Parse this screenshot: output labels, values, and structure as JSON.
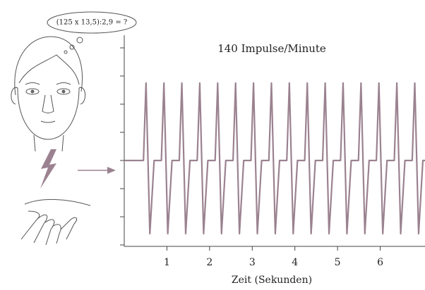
{
  "chart_data": {
    "type": "line",
    "title": "140 Impulse/Minute",
    "annotation": "(125 x 13,5):2,9 = ?",
    "x_label": "Zeit (Sekunden)",
    "color": "#9b8290",
    "x": [
      0,
      0.45,
      0.51,
      0.6,
      0.7,
      0.87,
      0.93,
      1.02,
      1.12,
      1.29,
      1.35,
      1.44,
      1.54,
      1.71,
      1.77,
      1.86,
      1.96,
      2.13,
      2.19,
      2.28,
      2.38,
      2.55,
      2.61,
      2.7,
      2.8,
      2.97,
      3.03,
      3.12,
      3.22,
      3.39,
      3.45,
      3.54,
      3.64,
      3.81,
      3.87,
      3.96,
      4.06,
      4.23,
      4.29,
      4.38,
      4.48,
      4.65,
      4.71,
      4.8,
      4.9,
      5.07,
      5.13,
      5.22,
      5.32,
      5.49,
      5.55,
      5.64,
      5.74,
      5.91,
      5.97,
      6.06,
      6.16,
      6.33,
      6.39,
      6.48,
      6.58,
      6.75,
      6.81,
      6.9,
      7.0,
      7.05
    ],
    "values": [
      0,
      0,
      2.75,
      -2.6,
      0,
      0,
      2.75,
      -2.6,
      0,
      0,
      2.75,
      -2.6,
      0,
      0,
      2.75,
      -2.6,
      0,
      0,
      2.75,
      -2.6,
      0,
      0,
      2.75,
      -2.6,
      0,
      0,
      2.75,
      -2.6,
      0,
      0,
      2.75,
      -2.6,
      0,
      0,
      2.75,
      -2.6,
      0,
      0,
      2.75,
      -2.6,
      0,
      0,
      2.75,
      -2.6,
      0,
      0,
      2.75,
      -2.6,
      0,
      0,
      2.75,
      -2.6,
      0,
      0,
      2.75,
      -2.6,
      0,
      0,
      2.75,
      -2.6,
      0,
      0,
      2.75,
      -2.6,
      0,
      0
    ],
    "xlim": [
      0,
      7.05
    ],
    "xticks": [
      1,
      2,
      3,
      4,
      5,
      6
    ],
    "ylim": [
      -3,
      4.5
    ],
    "yticks": [
      -3,
      -2,
      -1,
      0,
      1,
      2,
      3,
      4
    ]
  }
}
